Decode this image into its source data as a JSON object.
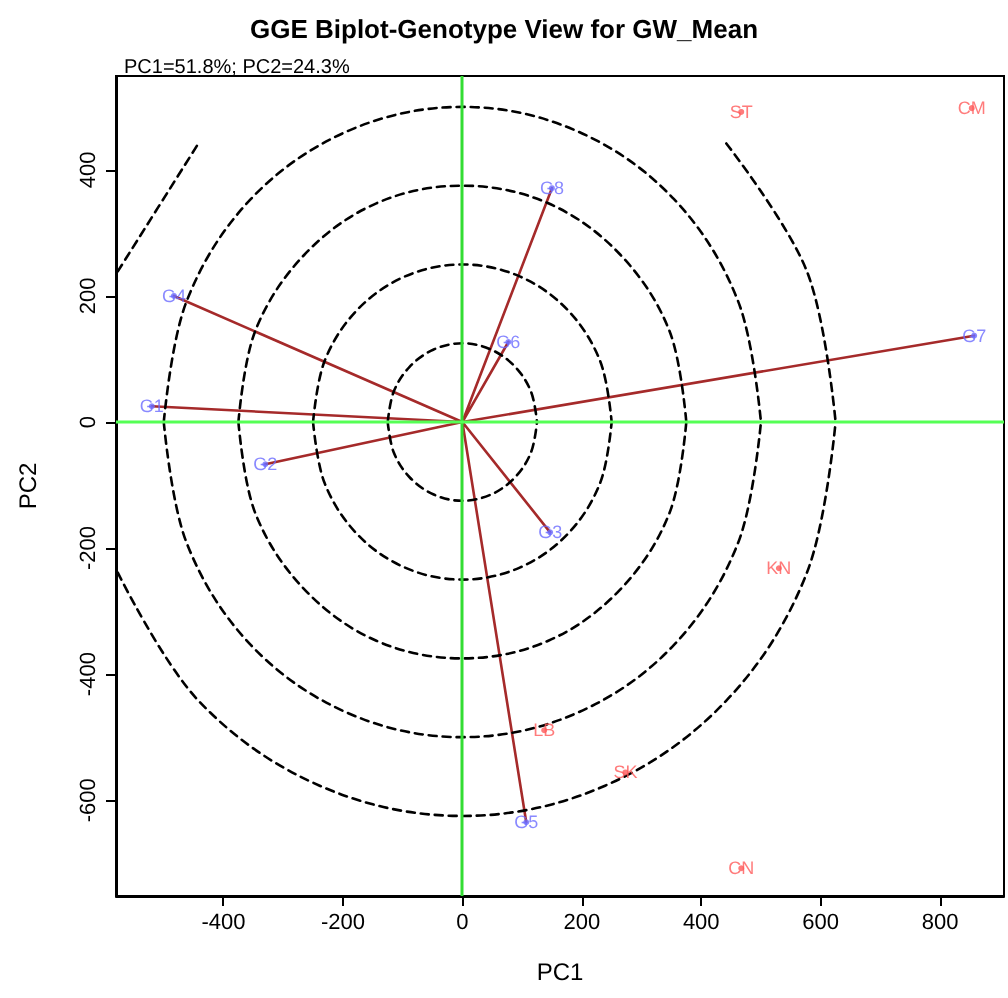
{
  "chart_data": {
    "type": "scatter",
    "title": "GGE Biplot-Genotype View for GW_Mean",
    "subtitle": "PC1=51.8%; PC2=24.3%",
    "xlabel": "PC1",
    "ylabel": "PC2",
    "xlim": [
      -580,
      907
    ],
    "ylim": [
      -752,
      549
    ],
    "xticks": [
      -400,
      -200,
      0,
      200,
      400,
      600,
      800
    ],
    "yticks": [
      -600,
      -400,
      -200,
      0,
      200,
      400
    ],
    "grid": false,
    "ref_lines": [
      {
        "axis": "x",
        "value": 0,
        "color": "#33dd33"
      },
      {
        "axis": "y",
        "value": 0,
        "color": "#55ff55"
      }
    ],
    "series": [
      {
        "type": "line",
        "color": "#a52a2a",
        "marker": "none",
        "x": [
          0,
          -520,
          null,
          0,
          -330,
          null,
          0,
          147,
          null,
          0,
          -483,
          null,
          0,
          107,
          null,
          0,
          77,
          null,
          0,
          857,
          null,
          0,
          150
        ],
        "values": [
          0,
          25,
          null,
          0,
          -67,
          null,
          0,
          -175,
          null,
          0,
          200,
          null,
          0,
          -635,
          null,
          0,
          127,
          null,
          0,
          137,
          null,
          0,
          371
        ]
      },
      {
        "type": "line",
        "color": "#000000",
        "marker": "none",
        "line_style": "dashed",
        "x": [
          -125,
          -115,
          -88,
          -48,
          0,
          48,
          88,
          115,
          125,
          null,
          -125,
          -115,
          -88,
          -48,
          0,
          48,
          88,
          115,
          125
        ],
        "values": [
          0,
          48,
          88,
          115,
          125,
          115,
          88,
          48,
          0,
          null,
          0,
          -48,
          -88,
          -115,
          -125,
          -115,
          -88,
          -48,
          0
        ]
      },
      {
        "type": "line",
        "color": "#000000",
        "marker": "none",
        "line_style": "dashed",
        "x": [
          -250,
          -231,
          -177,
          -96,
          0,
          96,
          177,
          231,
          250,
          null,
          -250,
          -231,
          -177,
          -96,
          0,
          96,
          177,
          231,
          250
        ],
        "values": [
          0,
          96,
          177,
          231,
          250,
          231,
          177,
          96,
          0,
          null,
          0,
          -96,
          -177,
          -231,
          -250,
          -231,
          -177,
          -96,
          0
        ]
      },
      {
        "type": "line",
        "color": "#000000",
        "marker": "none",
        "line_style": "dashed",
        "x": [
          -375,
          -347,
          -265,
          -144,
          0,
          144,
          265,
          347,
          375,
          null,
          -375,
          -347,
          -265,
          -144,
          0,
          144,
          265,
          347,
          375
        ],
        "values": [
          0,
          144,
          265,
          347,
          375,
          347,
          265,
          144,
          0,
          null,
          0,
          -144,
          -265,
          -347,
          -375,
          -347,
          -265,
          -144,
          0
        ]
      },
      {
        "type": "line",
        "color": "#000000",
        "marker": "none",
        "line_style": "dashed",
        "x": [
          -500,
          -462,
          -354,
          -191,
          0,
          191,
          354,
          462,
          500,
          null,
          -500,
          -462,
          -354,
          -191,
          0,
          191,
          354,
          462,
          500
        ],
        "values": [
          0,
          191,
          354,
          462,
          500,
          462,
          354,
          191,
          0,
          null,
          0,
          -191,
          -354,
          -462,
          -500,
          -462,
          -354,
          -191,
          0
        ]
      },
      {
        "type": "line",
        "color": "#000000",
        "marker": "none",
        "line_style": "dashed",
        "x": [
          -577,
          -442,
          null,
          442,
          577,
          625,
          null,
          -577,
          -442,
          -239,
          0,
          239,
          442,
          577,
          625
        ],
        "values": [
          239,
          442,
          null,
          442,
          239,
          0,
          null,
          -239,
          -442,
          -577,
          -625,
          -577,
          -442,
          -239,
          0
        ]
      },
      {
        "color": "#6b6bff",
        "marker": "circle",
        "x": [
          -520,
          -330,
          147,
          -483,
          107,
          77,
          857,
          150
        ],
        "values": [
          25,
          -67,
          -175,
          200,
          -635,
          127,
          137,
          371
        ],
        "value_labels": [
          "G1",
          "G2",
          "G3",
          "G4",
          "G5",
          "G6",
          "G7",
          "G8"
        ]
      },
      {
        "color": "#ff5a5a",
        "marker": "circle",
        "x": [
          853,
          530,
          137,
          467,
          273,
          467
        ],
        "values": [
          498,
          -232,
          -489,
          492,
          -556,
          -708
        ],
        "value_labels": [
          "CM",
          "KN",
          "LB",
          "ST",
          "SK",
          "CN"
        ]
      }
    ]
  }
}
